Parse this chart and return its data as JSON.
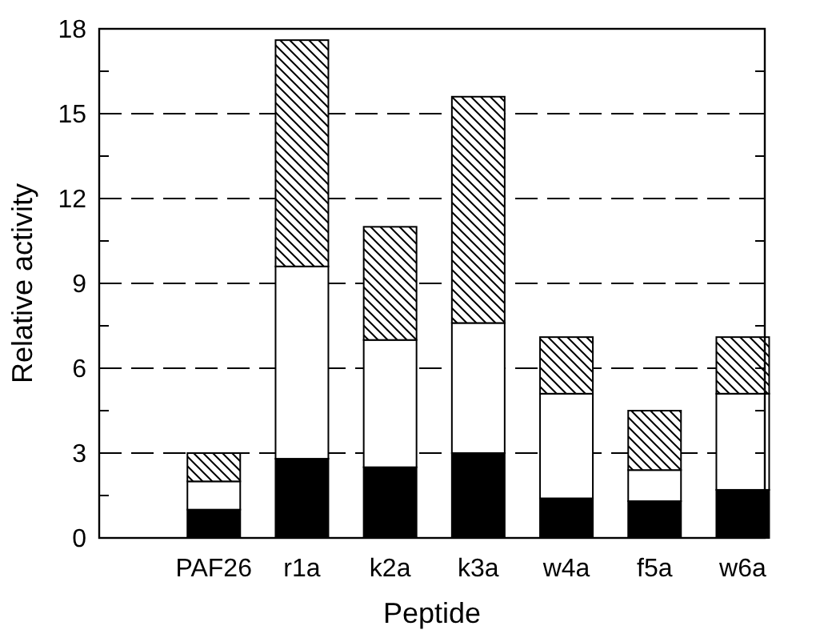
{
  "chart_data": {
    "type": "bar",
    "stacked": true,
    "xlabel": "Peptide",
    "ylabel": "Relative activity",
    "categories": [
      "PAF26",
      "r1a",
      "k2a",
      "k3a",
      "w4a",
      "f5a",
      "w6a"
    ],
    "series": [
      {
        "color": "#000000",
        "values": [
          1.0,
          2.8,
          2.5,
          3.0,
          1.4,
          1.3,
          1.7
        ]
      },
      {
        "color": "#ffffff",
        "values": [
          1.0,
          6.8,
          4.5,
          4.6,
          3.7,
          1.1,
          3.4
        ]
      },
      {
        "color": "#000000",
        "values": [
          1.0,
          8.0,
          4.0,
          8.0,
          2.0,
          2.1,
          2.0
        ]
      }
    ],
    "ylim": [
      0,
      18
    ],
    "yticks": [
      0,
      {
        "value": 1.5,
        "label": null
      },
      3,
      {
        "value": 4.5,
        "label": null
      },
      6,
      {
        "value": 7.5,
        "label": null
      },
      9,
      {
        "value": 10.5,
        "label": null
      },
      12,
      {
        "value": 13.5,
        "label": null
      },
      15,
      {
        "value": 16.5,
        "label": null
      },
      18
    ],
    "grid": "y",
    "line_style": "dashed"
  }
}
